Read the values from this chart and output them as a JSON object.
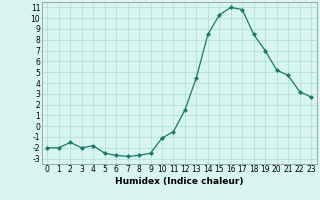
{
  "x": [
    0,
    1,
    2,
    3,
    4,
    5,
    6,
    7,
    8,
    9,
    10,
    11,
    12,
    13,
    14,
    15,
    16,
    17,
    18,
    19,
    20,
    21,
    22,
    23
  ],
  "y": [
    -2,
    -2,
    -1.5,
    -2,
    -1.8,
    -2.5,
    -2.7,
    -2.8,
    -2.7,
    -2.5,
    -1.1,
    -0.5,
    1.5,
    4.5,
    8.5,
    10.3,
    11.0,
    10.8,
    8.5,
    7.0,
    5.2,
    4.7,
    3.2,
    2.7
  ],
  "line_color": "#1a7a6a",
  "marker": "D",
  "marker_size": 2.0,
  "bg_color": "#d8f5f0",
  "grid_color": "#aaddda",
  "xlabel": "Humidex (Indice chaleur)",
  "ylabel": "",
  "xlim": [
    -0.5,
    23.5
  ],
  "ylim": [
    -3.5,
    11.5
  ],
  "yticks": [
    -3,
    -2,
    -1,
    0,
    1,
    2,
    3,
    4,
    5,
    6,
    7,
    8,
    9,
    10,
    11
  ],
  "xticks": [
    0,
    1,
    2,
    3,
    4,
    5,
    6,
    7,
    8,
    9,
    10,
    11,
    12,
    13,
    14,
    15,
    16,
    17,
    18,
    19,
    20,
    21,
    22,
    23
  ],
  "tick_fontsize": 5.5,
  "xlabel_fontsize": 6.5
}
